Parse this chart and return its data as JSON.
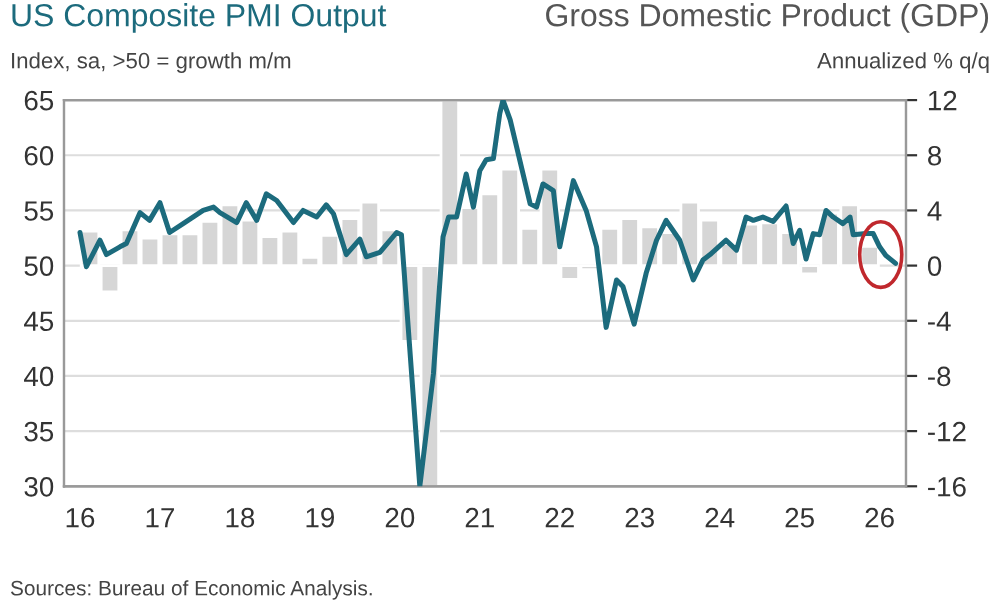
{
  "chart_data": {
    "type": "line",
    "title": "US Composite PMI Output",
    "subtitle": "Gross Domestic Product (GDP)",
    "ylabel": "Index, sa, >50 = growth m/m",
    "y2label": "Annualized % q/q",
    "annotations": [
      "Sources: Bureau of Economic Analysis."
    ],
    "xlim": [
      2015.8,
      2026.33
    ],
    "xticks": [
      {
        "value": 2016,
        "label": "16"
      },
      {
        "value": 2017,
        "label": "17"
      },
      {
        "value": 2018,
        "label": "18"
      },
      {
        "value": 2019,
        "label": "19"
      },
      {
        "value": 2020,
        "label": "20"
      },
      {
        "value": 2021,
        "label": "21"
      },
      {
        "value": 2022,
        "label": "22"
      },
      {
        "value": 2023,
        "label": "23"
      },
      {
        "value": 2024,
        "label": "24"
      },
      {
        "value": 2025,
        "label": "25"
      },
      {
        "value": 2026,
        "label": "26"
      }
    ],
    "ylim": [
      30,
      65
    ],
    "yticks": [
      30,
      35,
      40,
      45,
      50,
      55,
      60,
      65
    ],
    "y2lim": [
      -16,
      12
    ],
    "y2ticks": [
      -16,
      -12,
      -8,
      -4,
      0,
      4,
      8,
      12
    ],
    "grid": "y",
    "legend": false,
    "series": [
      {
        "type": "bar",
        "axis": "y2",
        "color": "#d6d6d6",
        "x": [
          2016.125,
          2016.375,
          2016.625,
          2016.875,
          2017.125,
          2017.375,
          2017.625,
          2017.875,
          2018.125,
          2018.375,
          2018.625,
          2018.875,
          2019.125,
          2019.375,
          2019.625,
          2019.875,
          2020.125,
          2020.375,
          2020.625,
          2020.875,
          2021.125,
          2021.375,
          2021.625,
          2021.875,
          2022.125,
          2022.375,
          2022.625,
          2022.875,
          2023.125,
          2023.375,
          2023.625,
          2023.875,
          2024.125,
          2024.375,
          2024.625,
          2024.875,
          2025.125,
          2025.375,
          2025.625,
          2025.875
        ],
        "values": [
          2.5,
          -1.9,
          2.6,
          2.0,
          2.3,
          2.3,
          3.2,
          4.4,
          3.3,
          2.1,
          2.5,
          0.6,
          2.2,
          3.4,
          4.6,
          2.6,
          -5.5,
          -16,
          12,
          4.2,
          5.2,
          7.0,
          2.7,
          7.0,
          -1.0,
          -0.3,
          2.7,
          3.4,
          2.8,
          2.4,
          4.6,
          3.3,
          1.6,
          3.0,
          3.1,
          2.4,
          -0.6,
          3.8,
          4.4,
          1.4
        ]
      },
      {
        "color": "#1c6b7d",
        "x": [
          2016.0,
          2016.08,
          2016.25,
          2016.33,
          2016.5,
          2016.58,
          2016.75,
          2016.87,
          2017.0,
          2017.12,
          2017.29,
          2017.54,
          2017.67,
          2017.75,
          2017.96,
          2018.08,
          2018.21,
          2018.33,
          2018.46,
          2018.67,
          2018.79,
          2018.96,
          2019.08,
          2019.17,
          2019.33,
          2019.5,
          2019.58,
          2019.75,
          2019.96,
          2020.02,
          2020.25,
          2020.42,
          2020.54,
          2020.61,
          2020.71,
          2020.83,
          2020.92,
          2021.0,
          2021.08,
          2021.17,
          2021.25,
          2021.29,
          2021.38,
          2021.63,
          2021.71,
          2021.79,
          2021.92,
          2022.0,
          2022.17,
          2022.33,
          2022.46,
          2022.58,
          2022.71,
          2022.79,
          2022.93,
          2023.08,
          2023.21,
          2023.33,
          2023.5,
          2023.67,
          2023.79,
          2023.88,
          2024.08,
          2024.21,
          2024.33,
          2024.42,
          2024.54,
          2024.67,
          2024.83,
          2024.92,
          2025.0,
          2025.08,
          2025.17,
          2025.25,
          2025.33,
          2025.42,
          2025.54,
          2025.63,
          2025.67,
          2025.83,
          2025.92,
          2026.0,
          2026.08,
          2026.2
        ],
        "values": [
          53.0,
          49.9,
          52.3,
          51.0,
          51.7,
          52.0,
          54.8,
          54.1,
          55.7,
          53.0,
          53.8,
          55.0,
          55.3,
          54.8,
          53.9,
          55.7,
          54.1,
          56.5,
          55.9,
          53.9,
          55.0,
          54.4,
          55.5,
          54.7,
          51.0,
          52.4,
          50.8,
          51.2,
          53.0,
          52.8,
          30,
          40.2,
          52.6,
          54.4,
          54.4,
          58.3,
          55.3,
          58.6,
          59.6,
          59.7,
          63.8,
          65,
          63.2,
          55.6,
          55.3,
          57.4,
          56.8,
          51.7,
          57.7,
          55.0,
          51.7,
          44.4,
          48.7,
          48.1,
          44.7,
          49.3,
          52.3,
          54.1,
          52.3,
          48.7,
          50.5,
          51.0,
          52.3,
          51.4,
          54.4,
          54.1,
          54.4,
          54.0,
          55.4,
          52.0,
          53.2,
          50.6,
          52.9,
          52.8,
          55.0,
          54.4,
          53.8,
          54.4,
          52.8,
          52.9,
          52.9,
          51.7,
          50.9,
          50.2
        ]
      }
    ]
  }
}
